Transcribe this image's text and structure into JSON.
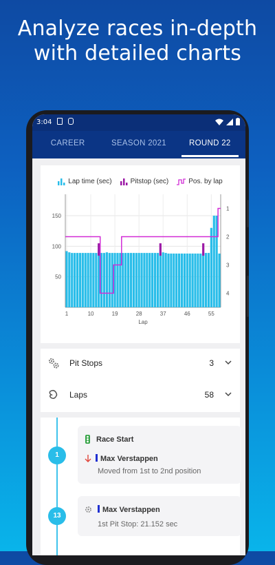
{
  "headline": {
    "line1": "Analyze races in-depth",
    "line2": "with detailed charts"
  },
  "status_bar": {
    "time": "3:04"
  },
  "tabs": [
    {
      "label": "CAREER",
      "active": false
    },
    {
      "label": "SEASON 2021",
      "active": false
    },
    {
      "label": "ROUND 22",
      "active": true
    }
  ],
  "legend": {
    "lap_time": "Lap time (sec)",
    "pitstop": "Pitstop (sec)",
    "position": "Pos. by lap"
  },
  "colors": {
    "lap_time": "#29bde9",
    "pitstop": "#9c1aa6",
    "position": "#d12bd6",
    "accent": "#0b3585"
  },
  "chart_data": {
    "type": "bar",
    "xlabel": "Lap",
    "x_ticks": [
      1,
      10,
      19,
      28,
      37,
      46,
      55
    ],
    "y_ticks_left": [
      50,
      100,
      150
    ],
    "y_ticks_right": [
      1,
      2,
      3,
      4
    ],
    "ylim_left": [
      0,
      185
    ],
    "ylim_right_positions": [
      0.5,
      4.5
    ],
    "laps": [
      1,
      2,
      3,
      4,
      5,
      6,
      7,
      8,
      9,
      10,
      11,
      12,
      13,
      14,
      15,
      16,
      17,
      18,
      19,
      20,
      21,
      22,
      23,
      24,
      25,
      26,
      27,
      28,
      29,
      30,
      31,
      32,
      33,
      34,
      35,
      36,
      37,
      38,
      39,
      40,
      41,
      42,
      43,
      44,
      45,
      46,
      47,
      48,
      49,
      50,
      51,
      52,
      53,
      54,
      55,
      56,
      57,
      58
    ],
    "lap_time": [
      92,
      90,
      89,
      89,
      89,
      89,
      89,
      89,
      89,
      89,
      89,
      89,
      89,
      89,
      89,
      90,
      89,
      89,
      89,
      89,
      89,
      89,
      89,
      89,
      89,
      89,
      89,
      89,
      89,
      89,
      89,
      89,
      89,
      89,
      89,
      89,
      90,
      89,
      88,
      88,
      88,
      88,
      88,
      88,
      88,
      88,
      88,
      88,
      88,
      88,
      88,
      89,
      89,
      89,
      130,
      150,
      150,
      88
    ],
    "pitstop_laps": [
      13,
      36,
      52
    ],
    "pitstop_values": [
      21.152,
      20.8,
      21.0
    ],
    "position_by_lap": [
      2,
      2,
      2,
      2,
      2,
      2,
      2,
      2,
      2,
      2,
      2,
      2,
      2,
      4,
      4,
      4,
      4,
      4,
      3,
      3,
      3,
      2,
      2,
      2,
      2,
      2,
      2,
      2,
      2,
      2,
      2,
      2,
      2,
      2,
      2,
      2,
      2,
      2,
      2,
      2,
      2,
      2,
      2,
      2,
      2,
      2,
      2,
      2,
      2,
      2,
      2,
      2,
      2,
      2,
      2,
      2,
      2,
      1
    ]
  },
  "stats": [
    {
      "label": "Pit Stops",
      "value": "3",
      "icon": "gears-icon"
    },
    {
      "label": "Laps",
      "value": "58",
      "icon": "track-icon"
    }
  ],
  "timeline": [
    {
      "lap": "1",
      "title": "Race Start",
      "title_icon": "traffic-light-icon",
      "driver": "Max Verstappen",
      "detail": "Moved from 1st to 2nd position",
      "change_icon": "arrow-down-icon"
    },
    {
      "lap": "13",
      "title_icon": "gear-icon",
      "driver": "Max Verstappen",
      "detail": "1st Pit Stop: 21.152 sec"
    }
  ]
}
